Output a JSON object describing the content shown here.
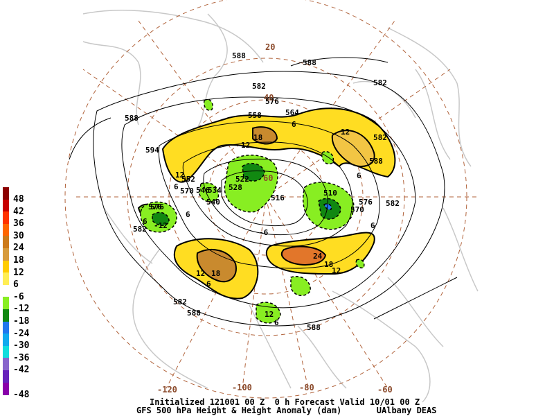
{
  "title_line1": "Initialized 121001 00 Z  0 h Forecast Valid 10/01 00 Z",
  "title_line2": "GFS 500 hPa Height & Height Anomaly (dam)       UAlbany DEAS",
  "legend": [
    {
      "label": "48",
      "color": "#8b0000"
    },
    {
      "label": "42",
      "color": "#c80000"
    },
    {
      "label": "36",
      "color": "#ff3300"
    },
    {
      "label": "30",
      "color": "#ff6600"
    },
    {
      "label": "24",
      "color": "#cc7a1a"
    },
    {
      "label": "18",
      "color": "#d79b3c"
    },
    {
      "label": "12",
      "color": "#ffcc00"
    },
    {
      "label": "6",
      "color": "#ffee55"
    },
    {
      "label": "-6",
      "color": "#ffffff"
    },
    {
      "label": "-12",
      "color": "#88ee22"
    },
    {
      "label": "-18",
      "color": "#118811"
    },
    {
      "label": "-24",
      "color": "#2277ee"
    },
    {
      "label": "-30",
      "color": "#11aaee"
    },
    {
      "label": "-36",
      "color": "#11dddd"
    },
    {
      "label": "-42",
      "color": "#8866cc"
    },
    {
      "label": "",
      "color": "#6622bb"
    },
    {
      "label": "-48",
      "color": "#8800aa"
    }
  ],
  "longitude_labels": [
    "-120",
    "-100",
    "-80",
    "-60"
  ],
  "latitude_labels": [
    "20",
    "40",
    "60"
  ],
  "height_labels": [
    "588",
    "588",
    "588",
    "582",
    "576",
    "570",
    "564",
    "558",
    "552",
    "546",
    "540",
    "534",
    "528",
    "522",
    "516",
    "510",
    "582",
    "576",
    "570",
    "588",
    "582",
    "576",
    "582",
    "594",
    "588",
    "582",
    "576",
    "582",
    "588"
  ],
  "anomaly_labels": [
    "12",
    "18",
    "12",
    "12",
    "18",
    "24",
    "18",
    "12",
    "6",
    "6",
    "-6",
    "-12",
    "12",
    "6",
    "6",
    "6",
    "6",
    "6",
    "12",
    "6"
  ],
  "colors": {
    "lon_lat": "#8b4a2b",
    "coast": "#c8c8c8",
    "contour": "#000000"
  }
}
